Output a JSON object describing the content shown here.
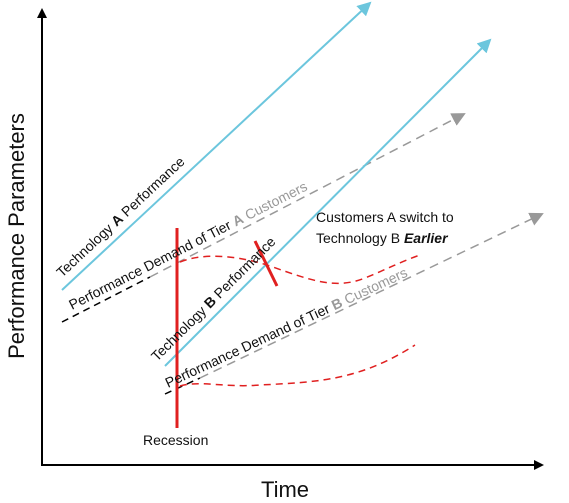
{
  "axes": {
    "y_label": "Performance Parameters",
    "x_label": "Time"
  },
  "labels": {
    "tech_a": {
      "pre": "Technology ",
      "bold": "A",
      "post": " Performance"
    },
    "demand_a": {
      "pre": "Performance Demand of Tier ",
      "bold": "A",
      "post": " Customers"
    },
    "tech_b": {
      "pre": "Technology ",
      "bold": "B",
      "post": " Performance"
    },
    "demand_b": {
      "pre": "Performance Demand of Tier ",
      "bold": "B",
      "post": " Customers"
    }
  },
  "annotation": {
    "line1": "Customers A switch to",
    "line2_pre": "Technology B ",
    "line2_emph": "Earlier"
  },
  "recession": "Recession"
}
